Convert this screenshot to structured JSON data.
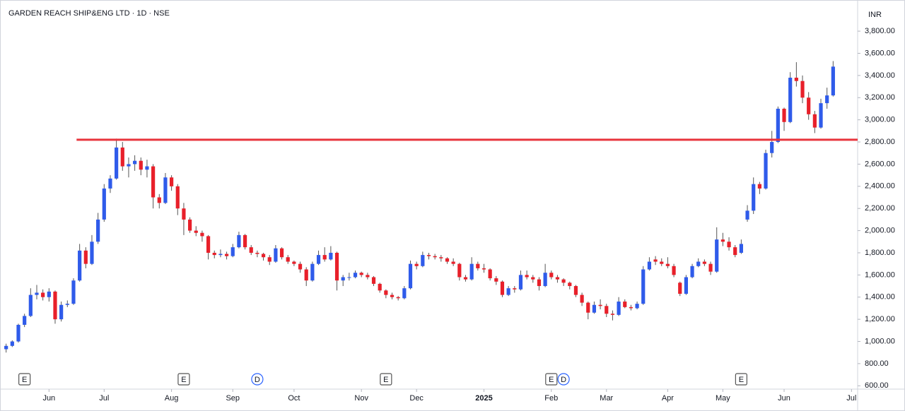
{
  "chart_data": {
    "type": "candlestick",
    "title": "GARDEN REACH SHIP&ENG LTD · 1D · NSE",
    "currency": "INR",
    "up_color": "#2f5bea",
    "down_color": "#e8202a",
    "ylim": [
      570,
      4030
    ],
    "yticks": [
      {
        "value": 600,
        "label": "600.00"
      },
      {
        "value": 800,
        "label": "800.00"
      },
      {
        "value": 1000,
        "label": "1,000.00"
      },
      {
        "value": 1200,
        "label": "1,200.00"
      },
      {
        "value": 1400,
        "label": "1,400.00"
      },
      {
        "value": 1600,
        "label": "1,600.00"
      },
      {
        "value": 1800,
        "label": "1,800.00"
      },
      {
        "value": 2000,
        "label": "2,000.00"
      },
      {
        "value": 2200,
        "label": "2,200.00"
      },
      {
        "value": 2400,
        "label": "2,400.00"
      },
      {
        "value": 2600,
        "label": "2,600.00"
      },
      {
        "value": 2800,
        "label": "2,800.00"
      },
      {
        "value": 3000,
        "label": "3,000.00"
      },
      {
        "value": 3200,
        "label": "3,200.00"
      },
      {
        "value": 3400,
        "label": "3,400.00"
      },
      {
        "value": 3600,
        "label": "3,600.00"
      },
      {
        "value": 3800,
        "label": "3,800.00"
      }
    ],
    "xlim": [
      -1,
      139
    ],
    "xticks": [
      {
        "value": 7,
        "label": "Jun"
      },
      {
        "value": 16,
        "label": "Jul"
      },
      {
        "value": 27,
        "label": "Aug"
      },
      {
        "value": 37,
        "label": "Sep"
      },
      {
        "value": 47,
        "label": "Oct"
      },
      {
        "value": 58,
        "label": "Nov"
      },
      {
        "value": 67,
        "label": "Dec"
      },
      {
        "value": 78,
        "label": "2025"
      },
      {
        "value": 89,
        "label": "Feb"
      },
      {
        "value": 98,
        "label": "Mar"
      },
      {
        "value": 108,
        "label": "Apr"
      },
      {
        "value": 117,
        "label": "May"
      },
      {
        "value": 127,
        "label": "Jun"
      },
      {
        "value": 138,
        "label": "Jul"
      }
    ],
    "hline": {
      "value": 2820,
      "from": 11.5,
      "color": "#e8343c"
    },
    "events": [
      {
        "x": 3,
        "label": "E"
      },
      {
        "x": 29,
        "label": "E"
      },
      {
        "x": 41,
        "label": "D"
      },
      {
        "x": 62,
        "label": "E"
      },
      {
        "x": 89,
        "label": "E"
      },
      {
        "x": 91,
        "label": "D"
      },
      {
        "x": 120,
        "label": "E"
      }
    ],
    "candles": [
      [
        930,
        980,
        900,
        960
      ],
      [
        960,
        1010,
        950,
        1000
      ],
      [
        1000,
        1160,
        990,
        1150
      ],
      [
        1150,
        1250,
        1130,
        1230
      ],
      [
        1230,
        1480,
        1220,
        1420
      ],
      [
        1420,
        1510,
        1380,
        1440
      ],
      [
        1440,
        1470,
        1370,
        1400
      ],
      [
        1400,
        1480,
        1360,
        1450
      ],
      [
        1450,
        1460,
        1160,
        1200
      ],
      [
        1200,
        1360,
        1180,
        1330
      ],
      [
        1330,
        1370,
        1310,
        1340
      ],
      [
        1340,
        1570,
        1330,
        1550
      ],
      [
        1550,
        1880,
        1540,
        1820
      ],
      [
        1820,
        1850,
        1660,
        1700
      ],
      [
        1700,
        1960,
        1690,
        1900
      ],
      [
        1900,
        2160,
        1880,
        2100
      ],
      [
        2100,
        2420,
        2080,
        2380
      ],
      [
        2380,
        2500,
        2340,
        2470
      ],
      [
        2470,
        2830,
        2460,
        2750
      ],
      [
        2750,
        2800,
        2540,
        2580
      ],
      [
        2580,
        2660,
        2480,
        2600
      ],
      [
        2600,
        2680,
        2540,
        2630
      ],
      [
        2630,
        2660,
        2500,
        2550
      ],
      [
        2550,
        2640,
        2480,
        2580
      ],
      [
        2580,
        2600,
        2200,
        2300
      ],
      [
        2300,
        2330,
        2200,
        2250
      ],
      [
        2250,
        2520,
        2240,
        2480
      ],
      [
        2480,
        2500,
        2360,
        2400
      ],
      [
        2400,
        2420,
        2140,
        2200
      ],
      [
        2200,
        2250,
        1960,
        2100
      ],
      [
        2100,
        2120,
        1980,
        2000
      ],
      [
        2000,
        2040,
        1950,
        1980
      ],
      [
        1980,
        2000,
        1900,
        1950
      ],
      [
        1950,
        1960,
        1740,
        1800
      ],
      [
        1800,
        1820,
        1750,
        1780
      ],
      [
        1780,
        1830,
        1760,
        1790
      ],
      [
        1790,
        1810,
        1740,
        1770
      ],
      [
        1770,
        1880,
        1760,
        1850
      ],
      [
        1850,
        1990,
        1840,
        1960
      ],
      [
        1960,
        1970,
        1830,
        1850
      ],
      [
        1850,
        1870,
        1780,
        1800
      ],
      [
        1800,
        1820,
        1760,
        1790
      ],
      [
        1790,
        1800,
        1730,
        1760
      ],
      [
        1760,
        1780,
        1690,
        1720
      ],
      [
        1720,
        1870,
        1710,
        1840
      ],
      [
        1840,
        1850,
        1740,
        1760
      ],
      [
        1760,
        1780,
        1700,
        1720
      ],
      [
        1720,
        1730,
        1680,
        1700
      ],
      [
        1700,
        1720,
        1620,
        1650
      ],
      [
        1650,
        1670,
        1500,
        1550
      ],
      [
        1550,
        1720,
        1540,
        1700
      ],
      [
        1700,
        1820,
        1690,
        1780
      ],
      [
        1780,
        1850,
        1720,
        1740
      ],
      [
        1740,
        1860,
        1730,
        1800
      ],
      [
        1800,
        1810,
        1460,
        1550
      ],
      [
        1550,
        1600,
        1500,
        1580
      ],
      [
        1580,
        1620,
        1550,
        1580
      ],
      [
        1580,
        1640,
        1570,
        1620
      ],
      [
        1620,
        1630,
        1580,
        1600
      ],
      [
        1600,
        1620,
        1560,
        1580
      ],
      [
        1580,
        1590,
        1500,
        1520
      ],
      [
        1520,
        1530,
        1440,
        1460
      ],
      [
        1460,
        1470,
        1390,
        1420
      ],
      [
        1420,
        1440,
        1380,
        1400
      ],
      [
        1400,
        1410,
        1370,
        1390
      ],
      [
        1390,
        1500,
        1380,
        1480
      ],
      [
        1480,
        1730,
        1470,
        1700
      ],
      [
        1700,
        1720,
        1650,
        1680
      ],
      [
        1680,
        1810,
        1670,
        1780
      ],
      [
        1780,
        1800,
        1740,
        1770
      ],
      [
        1770,
        1790,
        1740,
        1760
      ],
      [
        1760,
        1780,
        1720,
        1750
      ],
      [
        1750,
        1760,
        1700,
        1720
      ],
      [
        1720,
        1750,
        1680,
        1700
      ],
      [
        1700,
        1710,
        1550,
        1580
      ],
      [
        1580,
        1600,
        1540,
        1560
      ],
      [
        1560,
        1760,
        1550,
        1700
      ],
      [
        1700,
        1720,
        1640,
        1660
      ],
      [
        1660,
        1700,
        1620,
        1650
      ],
      [
        1650,
        1660,
        1550,
        1570
      ],
      [
        1570,
        1590,
        1510,
        1540
      ],
      [
        1540,
        1550,
        1400,
        1420
      ],
      [
        1420,
        1500,
        1410,
        1480
      ],
      [
        1480,
        1500,
        1440,
        1470
      ],
      [
        1470,
        1640,
        1460,
        1600
      ],
      [
        1600,
        1640,
        1560,
        1580
      ],
      [
        1580,
        1600,
        1530,
        1560
      ],
      [
        1560,
        1580,
        1460,
        1500
      ],
      [
        1500,
        1700,
        1490,
        1620
      ],
      [
        1620,
        1640,
        1560,
        1580
      ],
      [
        1580,
        1600,
        1530,
        1560
      ],
      [
        1560,
        1570,
        1500,
        1530
      ],
      [
        1530,
        1540,
        1470,
        1500
      ],
      [
        1500,
        1510,
        1400,
        1420
      ],
      [
        1420,
        1440,
        1320,
        1350
      ],
      [
        1350,
        1360,
        1200,
        1260
      ],
      [
        1260,
        1360,
        1250,
        1330
      ],
      [
        1330,
        1380,
        1290,
        1320
      ],
      [
        1320,
        1340,
        1220,
        1250
      ],
      [
        1250,
        1280,
        1190,
        1240
      ],
      [
        1240,
        1400,
        1230,
        1360
      ],
      [
        1360,
        1380,
        1300,
        1310
      ],
      [
        1310,
        1330,
        1280,
        1300
      ],
      [
        1300,
        1360,
        1290,
        1340
      ],
      [
        1340,
        1680,
        1330,
        1650
      ],
      [
        1650,
        1760,
        1640,
        1720
      ],
      [
        1740,
        1770,
        1690,
        1720
      ],
      [
        1720,
        1750,
        1680,
        1700
      ],
      [
        1700,
        1760,
        1660,
        1680
      ],
      [
        1680,
        1700,
        1580,
        1600
      ],
      [
        1530,
        1540,
        1410,
        1430
      ],
      [
        1430,
        1600,
        1420,
        1580
      ],
      [
        1580,
        1700,
        1570,
        1680
      ],
      [
        1680,
        1750,
        1670,
        1720
      ],
      [
        1720,
        1740,
        1680,
        1700
      ],
      [
        1700,
        1720,
        1600,
        1630
      ],
      [
        1630,
        2030,
        1620,
        1920
      ],
      [
        1920,
        1980,
        1860,
        1900
      ],
      [
        1900,
        1940,
        1820,
        1850
      ],
      [
        1850,
        1870,
        1760,
        1780
      ],
      [
        1800,
        1920,
        1790,
        1880
      ],
      [
        2100,
        2230,
        2080,
        2180
      ],
      [
        2180,
        2480,
        2150,
        2420
      ],
      [
        2420,
        2440,
        2330,
        2380
      ],
      [
        2380,
        2730,
        2370,
        2700
      ],
      [
        2700,
        2900,
        2660,
        2800
      ],
      [
        2800,
        3120,
        2790,
        3100
      ],
      [
        3100,
        3110,
        2900,
        2980
      ],
      [
        2980,
        3430,
        2970,
        3380
      ],
      [
        3380,
        3520,
        3300,
        3350
      ],
      [
        3350,
        3400,
        3150,
        3200
      ],
      [
        3200,
        3250,
        3000,
        3050
      ],
      [
        3050,
        3080,
        2880,
        2930
      ],
      [
        2930,
        3190,
        2920,
        3150
      ],
      [
        3150,
        3290,
        3100,
        3220
      ],
      [
        3220,
        3530,
        3210,
        3480
      ]
    ]
  }
}
